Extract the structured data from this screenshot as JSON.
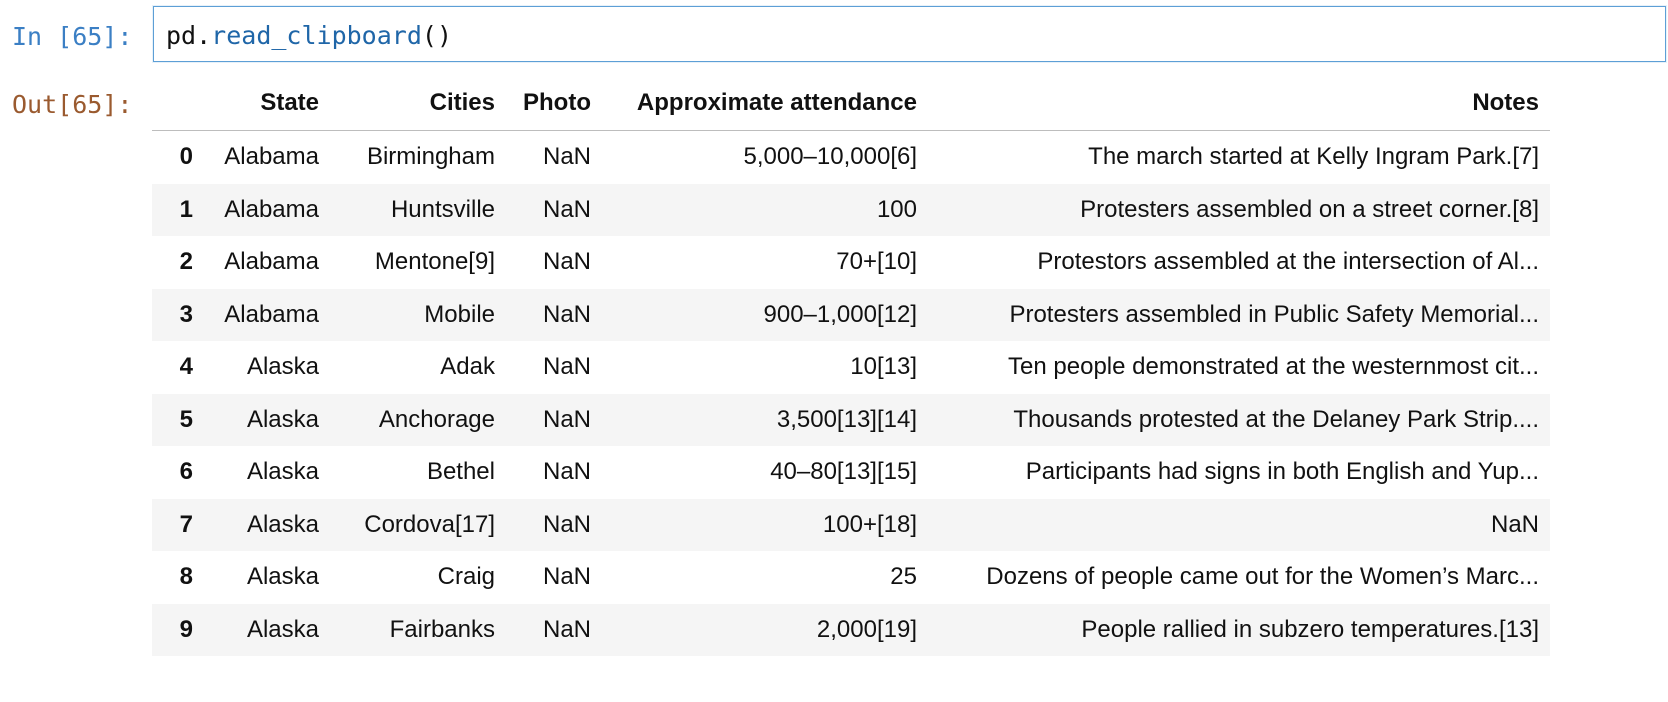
{
  "input_cell": {
    "prompt": "In [65]:",
    "code_object": "pd",
    "code_dot": ".",
    "code_function": "read_clipboard",
    "code_parens": "()"
  },
  "output_cell": {
    "prompt": "Out[65]:"
  },
  "dataframe": {
    "columns": [
      "",
      "State",
      "Cities",
      "Photo",
      "Approximate attendance",
      "Notes"
    ],
    "rows": [
      {
        "index": "0",
        "state": "Alabama",
        "cities": "Birmingham",
        "photo": "NaN",
        "attendance": "5,000–10,000[6]",
        "notes": "The march started at Kelly Ingram Park.[7]"
      },
      {
        "index": "1",
        "state": "Alabama",
        "cities": "Huntsville",
        "photo": "NaN",
        "attendance": "100",
        "notes": "Protesters assembled on a street corner.[8]"
      },
      {
        "index": "2",
        "state": "Alabama",
        "cities": "Mentone[9]",
        "photo": "NaN",
        "attendance": "70+[10]",
        "notes": "Protestors assembled at the intersection of Al..."
      },
      {
        "index": "3",
        "state": "Alabama",
        "cities": "Mobile",
        "photo": "NaN",
        "attendance": "900–1,000[12]",
        "notes": "Protesters assembled in Public Safety Memorial..."
      },
      {
        "index": "4",
        "state": "Alaska",
        "cities": "Adak",
        "photo": "NaN",
        "attendance": "10[13]",
        "notes": "Ten people demonstrated at the westernmost cit..."
      },
      {
        "index": "5",
        "state": "Alaska",
        "cities": "Anchorage",
        "photo": "NaN",
        "attendance": "3,500[13][14]",
        "notes": "Thousands protested at the Delaney Park Strip...."
      },
      {
        "index": "6",
        "state": "Alaska",
        "cities": "Bethel",
        "photo": "NaN",
        "attendance": "40–80[13][15]",
        "notes": "Participants had signs in both English and Yup..."
      },
      {
        "index": "7",
        "state": "Alaska",
        "cities": "Cordova[17]",
        "photo": "NaN",
        "attendance": "100+[18]",
        "notes": "NaN"
      },
      {
        "index": "8",
        "state": "Alaska",
        "cities": "Craig",
        "photo": "NaN",
        "attendance": "25",
        "notes": "Dozens of people came out for the Women’s Marc..."
      },
      {
        "index": "9",
        "state": "Alaska",
        "cities": "Fairbanks",
        "photo": "NaN",
        "attendance": "2,000[19]",
        "notes": "People rallied in subzero temperatures.[13]"
      }
    ]
  },
  "colors": {
    "in_prompt": "#3b7fc4",
    "out_prompt": "#9a5a2f",
    "input_border": "#5d9fd6",
    "function_name": "#1f66a8",
    "stripe": "#f5f5f5"
  }
}
